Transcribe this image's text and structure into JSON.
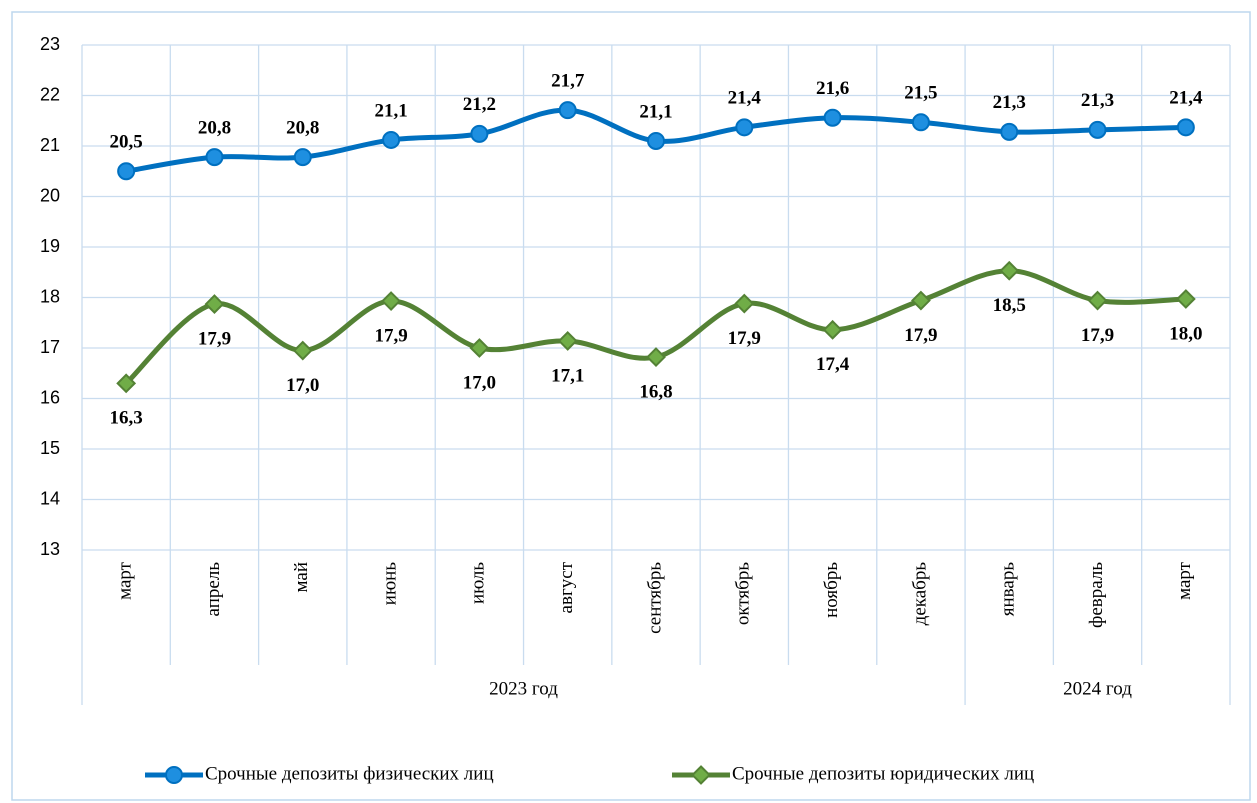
{
  "chart_data": {
    "type": "line",
    "categories": [
      "март",
      "апрель",
      "май",
      "июнь",
      "июль",
      "август",
      "сентябрь",
      "октябрь",
      "ноябрь",
      "декабрь",
      "январь",
      "февраль",
      "март"
    ],
    "groups": [
      {
        "name": "2023 год",
        "count": 10
      },
      {
        "name": "2024 год",
        "count": 3
      }
    ],
    "series": [
      {
        "name": "Срочные депозиты физических лиц",
        "color": "#0070c0",
        "marker": "circle",
        "marker_color": "#1e8fe0",
        "label_color": "#1f3864",
        "label_position": "above",
        "values": [
          20.5,
          20.78,
          20.78,
          21.12,
          21.24,
          21.71,
          21.1,
          21.37,
          21.56,
          21.47,
          21.28,
          21.32,
          21.37
        ],
        "value_labels": [
          "20,5",
          "20,8",
          "20,8",
          "21,1",
          "21,2",
          "21,7",
          "21,1",
          "21,4",
          "21,6",
          "21,5",
          "21,3",
          "21,3",
          "21,4"
        ]
      },
      {
        "name": "Срочные депозиты юридических лиц",
        "color": "#548235",
        "marker": "diamond",
        "marker_color": "#70ad47",
        "label_color": "#375623",
        "label_position": "below",
        "values": [
          16.3,
          17.87,
          16.95,
          17.93,
          17.0,
          17.14,
          16.82,
          17.88,
          17.36,
          17.94,
          18.53,
          17.94,
          17.97
        ],
        "value_labels": [
          "16,3",
          "17,9",
          "17,0",
          "17,9",
          "17,0",
          "17,1",
          "16,8",
          "17,9",
          "17,4",
          "17,9",
          "18,5",
          "17,9",
          "18,0"
        ]
      }
    ],
    "ylim": [
      13,
      23
    ],
    "yticks": [
      13,
      14,
      15,
      16,
      17,
      18,
      19,
      20,
      21,
      22,
      23
    ],
    "grid": true,
    "smooth": true,
    "legend": "bottom"
  }
}
